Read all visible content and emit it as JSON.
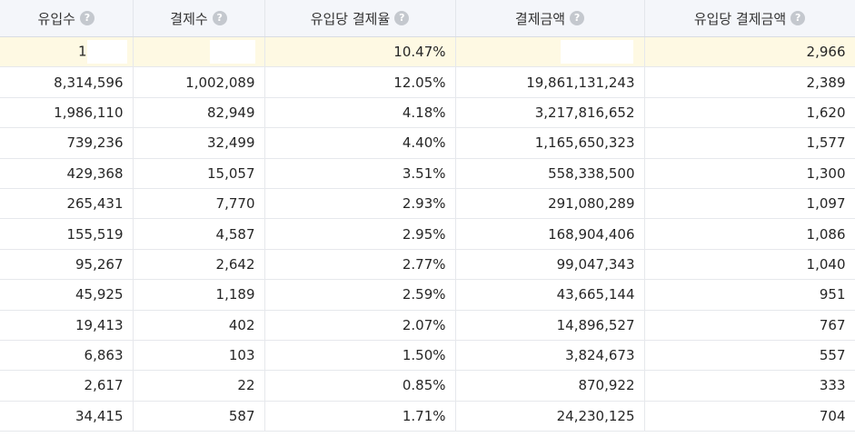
{
  "table": {
    "headers": [
      {
        "label": "유입수"
      },
      {
        "label": "결제수"
      },
      {
        "label": "유입당 결제율"
      },
      {
        "label": "결제금액"
      },
      {
        "label": "유입당 결제금액"
      }
    ],
    "help_icon_glyph": "?",
    "summary_row": {
      "visits": "",
      "payments": "",
      "conversion_rate": "10.47%",
      "payment_amount": "",
      "amount_per_visit": "2,966",
      "masked_cells": [
        "visits",
        "payments",
        "payment_amount"
      ],
      "visible_fragment_visits": "1"
    },
    "rows": [
      [
        "8,314,596",
        "1,002,089",
        "12.05%",
        "19,861,131,243",
        "2,389"
      ],
      [
        "1,986,110",
        "82,949",
        "4.18%",
        "3,217,816,652",
        "1,620"
      ],
      [
        "739,236",
        "32,499",
        "4.40%",
        "1,165,650,323",
        "1,577"
      ],
      [
        "429,368",
        "15,057",
        "3.51%",
        "558,338,500",
        "1,300"
      ],
      [
        "265,431",
        "7,770",
        "2.93%",
        "291,080,289",
        "1,097"
      ],
      [
        "155,519",
        "4,587",
        "2.95%",
        "168,904,406",
        "1,086"
      ],
      [
        "95,267",
        "2,642",
        "2.77%",
        "99,047,343",
        "1,040"
      ],
      [
        "45,925",
        "1,189",
        "2.59%",
        "43,665,144",
        "951"
      ],
      [
        "19,413",
        "402",
        "2.07%",
        "14,896,527",
        "767"
      ],
      [
        "6,863",
        "103",
        "1.50%",
        "3,824,673",
        "557"
      ],
      [
        "2,617",
        "22",
        "0.85%",
        "870,922",
        "333"
      ],
      [
        "34,415",
        "587",
        "1.71%",
        "24,230,125",
        "704"
      ]
    ]
  },
  "colors": {
    "header_bg": "#f4f6fa",
    "summary_bg": "#fef9e3",
    "border": "#e6e8ec",
    "help_icon": "#c4c8ce"
  }
}
